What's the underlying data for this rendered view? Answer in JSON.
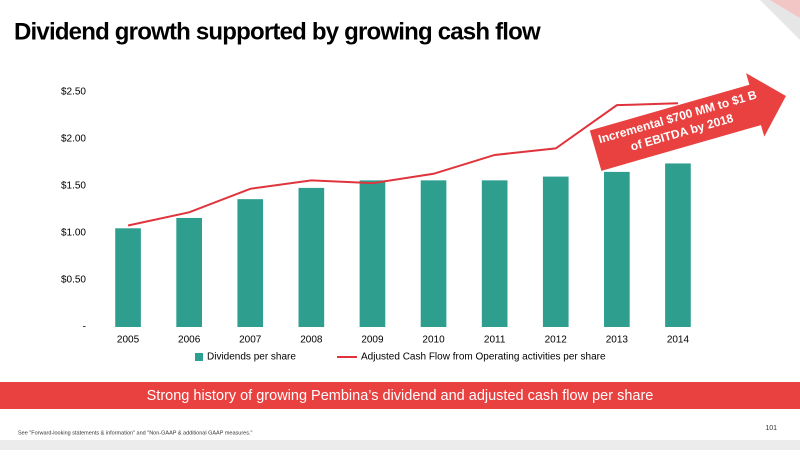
{
  "chart_data": {
    "type": "bar",
    "title": "Dividend growth supported by growing cash flow",
    "categories": [
      "2005",
      "2006",
      "2007",
      "2008",
      "2009",
      "2010",
      "2011",
      "2012",
      "2013",
      "2014"
    ],
    "series": [
      {
        "name": "Dividends per share",
        "type": "bar",
        "color": "#2e9e8e",
        "values": [
          1.05,
          1.16,
          1.36,
          1.48,
          1.56,
          1.56,
          1.56,
          1.6,
          1.65,
          1.74
        ]
      },
      {
        "name": "Adjusted Cash Flow from Operating activities per share",
        "type": "line",
        "color": "#e0343c",
        "values": [
          1.08,
          1.22,
          1.47,
          1.56,
          1.53,
          1.63,
          1.83,
          1.9,
          2.36,
          2.38
        ]
      }
    ],
    "ylim": [
      0,
      2.5
    ],
    "yticks": [
      {
        "value": 0,
        "label": "-"
      },
      {
        "value": 0.5,
        "label": "$0.50"
      },
      {
        "value": 1,
        "label": "$1.00"
      },
      {
        "value": 1.5,
        "label": "$1.50"
      },
      {
        "value": 2,
        "label": "$2.00"
      },
      {
        "value": 2.5,
        "label": "$2.50"
      }
    ],
    "grid": false,
    "legend": "bottom",
    "annotation": [
      "Incremental $700 MM to $1 B",
      "of EBITDA by 2018"
    ],
    "banner": "Strong history of growing Pembina’s dividend and adjusted cash flow per share",
    "footnote": "See \"Forward-looking statements & information\" and \"Non-GAAP & additional GAAP measures.\"",
    "page_number": "101"
  }
}
